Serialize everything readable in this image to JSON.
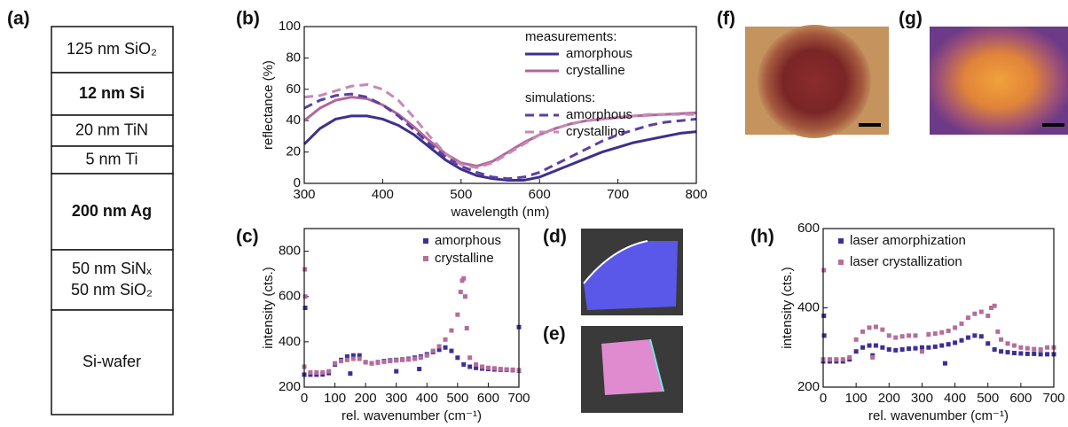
{
  "panel_labels": [
    "(a)",
    "(b)",
    "(c)",
    "(d)",
    "(e)",
    "(f)",
    "(g)",
    "(h)"
  ],
  "layer_stack": {
    "layers": [
      {
        "lines": [
          "125 nm SiO₂"
        ],
        "bold": false
      },
      {
        "lines": [
          "12 nm Si"
        ],
        "bold": true
      },
      {
        "lines": [
          "20 nm TiN"
        ],
        "bold": false
      },
      {
        "lines": [
          "5 nm Ti"
        ],
        "bold": false
      },
      {
        "lines": [
          "200 nm Ag"
        ],
        "bold": true
      },
      {
        "lines": [
          "50 nm SiNₓ",
          "50 nm SiO₂"
        ],
        "bold": false
      },
      {
        "lines": [
          "Si-wafer"
        ],
        "bold": false
      }
    ]
  },
  "chart_data": [
    {
      "type": "line",
      "xlabel": "wavelength (nm)",
      "ylabel": "reflectance (%)",
      "xlim": [
        300,
        800
      ],
      "xticks": [
        300,
        400,
        500,
        600,
        700,
        800
      ],
      "ylim": [
        0,
        100
      ],
      "yticks": [
        0,
        20,
        40,
        60,
        80,
        100
      ],
      "legend": "outside right",
      "legend_titles": [
        "measurements:",
        "simulations:"
      ],
      "x": [
        300,
        320,
        340,
        360,
        380,
        400,
        420,
        440,
        460,
        480,
        500,
        520,
        540,
        560,
        580,
        600,
        620,
        640,
        660,
        680,
        700,
        720,
        740,
        760,
        780,
        800
      ],
      "series": [
        {
          "name": "amorphous",
          "color": "#3f2f8e",
          "dashed": false,
          "values": [
            25,
            35,
            41,
            43,
            43,
            41,
            37,
            31,
            23,
            15,
            9,
            5,
            3,
            2,
            2,
            4,
            8,
            12,
            16,
            20,
            23,
            26,
            28,
            30,
            32,
            33
          ]
        },
        {
          "name": "crystalline",
          "color": "#b0689a",
          "dashed": false,
          "values": [
            40,
            48,
            53,
            55,
            54,
            50,
            44,
            36,
            27,
            19,
            13,
            11,
            14,
            20,
            26,
            31,
            35,
            38,
            40,
            41,
            42,
            43,
            43.5,
            44,
            44.5,
            45
          ]
        },
        {
          "name": "amorphous",
          "color": "#5b3fa3",
          "dashed": true,
          "values": [
            48,
            53,
            56,
            57,
            55,
            50,
            43,
            34,
            25,
            17,
            11,
            7,
            4,
            3,
            4,
            7,
            12,
            17,
            22,
            27,
            31,
            34,
            37,
            39,
            40,
            41
          ]
        },
        {
          "name": "crystalline",
          "color": "#c788b8",
          "dashed": true,
          "values": [
            55,
            56,
            59,
            62,
            63,
            60,
            53,
            42,
            30,
            19,
            12,
            10,
            13,
            19,
            25,
            31,
            35,
            38,
            40,
            41,
            42,
            43,
            44,
            44,
            44,
            44
          ]
        }
      ]
    },
    {
      "type": "scatter",
      "xlabel": "rel. wavenumber (cm⁻¹)",
      "ylabel": "intensity (cts.)",
      "xlim": [
        0,
        700
      ],
      "xticks": [
        0,
        100,
        200,
        300,
        400,
        500,
        600,
        700
      ],
      "ylim": [
        200,
        900
      ],
      "yticks": [
        200,
        400,
        600,
        800
      ],
      "legend": "upper right",
      "series": [
        {
          "name": "amorphous",
          "color": "#3b2f96",
          "x": [
            0,
            3,
            20,
            40,
            60,
            80,
            100,
            120,
            140,
            150,
            160,
            180,
            200,
            220,
            240,
            260,
            280,
            300,
            300,
            320,
            340,
            360,
            375,
            380,
            400,
            420,
            440,
            460,
            480,
            500,
            520,
            540,
            560,
            580,
            600,
            620,
            640,
            660,
            680,
            700,
            700
          ],
          "values": [
            255,
            550,
            255,
            255,
            256,
            262,
            300,
            320,
            335,
            260,
            340,
            340,
            310,
            305,
            310,
            315,
            318,
            320,
            270,
            322,
            325,
            330,
            280,
            335,
            345,
            355,
            365,
            375,
            360,
            330,
            300,
            290,
            285,
            282,
            280,
            278,
            277,
            276,
            275,
            273,
            465
          ]
        },
        {
          "name": "crystalline",
          "color": "#b56d9a",
          "x": [
            0,
            2,
            3,
            20,
            40,
            60,
            80,
            100,
            120,
            140,
            160,
            180,
            200,
            220,
            240,
            260,
            280,
            300,
            320,
            340,
            360,
            380,
            400,
            420,
            440,
            460,
            480,
            500,
            510,
            515,
            520,
            525,
            530,
            540,
            560,
            580,
            600,
            620,
            640,
            660,
            680,
            700
          ],
          "values": [
            290,
            720,
            600,
            265,
            265,
            265,
            270,
            305,
            315,
            320,
            325,
            325,
            310,
            305,
            308,
            312,
            315,
            318,
            320,
            322,
            325,
            330,
            340,
            360,
            380,
            410,
            450,
            520,
            620,
            670,
            680,
            600,
            460,
            330,
            300,
            290,
            285,
            283,
            280,
            278,
            277,
            275
          ]
        }
      ]
    },
    {
      "type": "scatter",
      "xlabel": "rel. wavenumber (cm⁻¹)",
      "ylabel": "intensity (cts.)",
      "xlim": [
        0,
        700
      ],
      "xticks": [
        0,
        100,
        200,
        300,
        400,
        500,
        600,
        700
      ],
      "ylim": [
        200,
        600
      ],
      "yticks": [
        200,
        400,
        600
      ],
      "legend": "upper left",
      "series": [
        {
          "name": "laser amorphization",
          "color": "#3b2f96",
          "x": [
            0,
            2,
            3,
            20,
            40,
            60,
            80,
            100,
            120,
            140,
            150,
            160,
            180,
            200,
            220,
            240,
            260,
            280,
            300,
            320,
            340,
            360,
            370,
            380,
            400,
            420,
            440,
            460,
            480,
            500,
            520,
            540,
            560,
            580,
            600,
            620,
            640,
            660,
            680,
            700
          ],
          "values": [
            265,
            380,
            330,
            265,
            265,
            265,
            270,
            290,
            300,
            305,
            280,
            305,
            300,
            295,
            293,
            295,
            297,
            298,
            300,
            300,
            302,
            305,
            260,
            308,
            312,
            318,
            325,
            330,
            328,
            310,
            295,
            290,
            288,
            286,
            285,
            284,
            284,
            283,
            283,
            283
          ]
        },
        {
          "name": "laser crystallization",
          "color": "#b56d9a",
          "x": [
            0,
            2,
            20,
            40,
            60,
            80,
            100,
            120,
            140,
            150,
            160,
            180,
            200,
            220,
            240,
            260,
            280,
            300,
            320,
            340,
            360,
            380,
            400,
            420,
            440,
            460,
            480,
            500,
            510,
            520,
            530,
            540,
            560,
            580,
            600,
            620,
            640,
            660,
            680,
            700
          ],
          "values": [
            270,
            495,
            270,
            270,
            270,
            275,
            320,
            340,
            350,
            275,
            352,
            345,
            330,
            325,
            328,
            330,
            330,
            290,
            333,
            335,
            338,
            342,
            350,
            360,
            375,
            385,
            390,
            380,
            400,
            405,
            340,
            320,
            310,
            305,
            300,
            298,
            296,
            295,
            300,
            300
          ]
        }
      ]
    }
  ]
}
